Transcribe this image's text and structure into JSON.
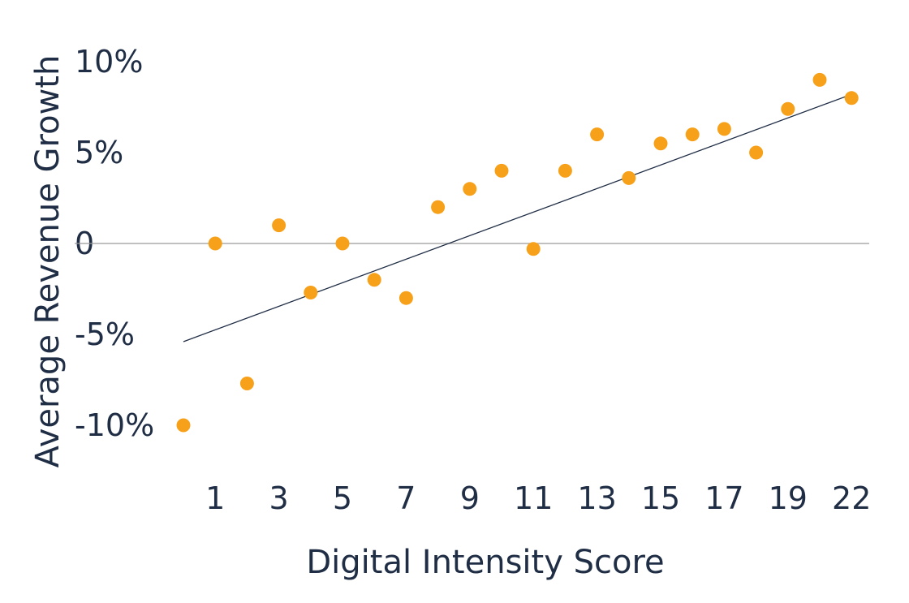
{
  "chart_data": {
    "type": "scatter",
    "xlabel": "Digital Intensity Score",
    "ylabel": "Average Revenue Growth",
    "x_tick_labels": [
      "1",
      "3",
      "5",
      "7",
      "9",
      "11",
      "13",
      "15",
      "17",
      "19",
      "22"
    ],
    "y_ticks": [
      {
        "value": 10,
        "label": "10%"
      },
      {
        "value": 5,
        "label": "5%"
      },
      {
        "value": 0,
        "label": "0"
      },
      {
        "value": -5,
        "label": "-5%"
      },
      {
        "value": -10,
        "label": "-10%"
      }
    ],
    "ylim": [
      -13,
      10
    ],
    "xlim": [
      -0.5,
      21.5
    ],
    "grid": false,
    "zero_line": true,
    "series": [
      {
        "color": "#f7a11a",
        "points": [
          {
            "x": 0,
            "y": -10
          },
          {
            "x": 1,
            "y": 0
          },
          {
            "x": 2,
            "y": -7.7
          },
          {
            "x": 3,
            "y": 1
          },
          {
            "x": 4,
            "y": -2.7
          },
          {
            "x": 5,
            "y": 0
          },
          {
            "x": 6,
            "y": -2
          },
          {
            "x": 7,
            "y": -3
          },
          {
            "x": 8,
            "y": 2
          },
          {
            "x": 9,
            "y": 3
          },
          {
            "x": 10,
            "y": 4
          },
          {
            "x": 11,
            "y": -0.3
          },
          {
            "x": 12,
            "y": 4
          },
          {
            "x": 13,
            "y": 6
          },
          {
            "x": 14,
            "y": 3.6
          },
          {
            "x": 15,
            "y": 5.5
          },
          {
            "x": 16,
            "y": 6
          },
          {
            "x": 17,
            "y": 6.3
          },
          {
            "x": 18,
            "y": 5
          },
          {
            "x": 19,
            "y": 7.4
          },
          {
            "x": 20,
            "y": 9
          },
          {
            "x": 21,
            "y": 8
          }
        ]
      }
    ],
    "trendline": {
      "color": "#1f2d45",
      "start": {
        "x": 0,
        "y": -5.4
      },
      "end": {
        "x": 21,
        "y": 8.2
      }
    },
    "colors": {
      "point": "#f7a11a",
      "text": "#1f2d45",
      "zero_line": "#9a9a9a"
    }
  }
}
